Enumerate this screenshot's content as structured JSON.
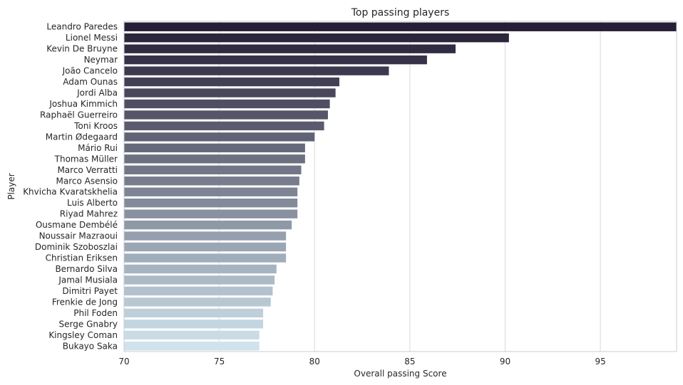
{
  "chart_data": {
    "type": "bar",
    "orientation": "horizontal",
    "title": "Top passing players",
    "xlabel": "Overall passing Score",
    "ylabel": "Player",
    "xlim": [
      70,
      99
    ],
    "xticks": [
      70,
      75,
      80,
      85,
      90,
      95
    ],
    "grid": true,
    "categories": [
      "Leandro Paredes",
      "Lionel Messi",
      "Kevin De Bruyne",
      "Neymar",
      "João Cancelo",
      "Adam Ounas",
      "Jordi Alba",
      "Joshua Kimmich",
      "Raphaël Guerreiro",
      "Toni Kroos",
      "Martin Ødegaard",
      "Mário Rui",
      "Thomas Müller",
      "Marco Verratti",
      "Marco Asensio",
      "Khvicha Kvaratskhelia",
      "Luis Alberto",
      "Riyad Mahrez",
      "Ousmane Dembélé",
      "Noussair Mazraoui",
      "Dominik Szoboszlai",
      "Christian Eriksen",
      "Bernardo Silva",
      "Jamal Musiala",
      "Dimitri Payet",
      "Frenkie de Jong",
      "Phil Foden",
      "Serge Gnabry",
      "Kingsley Coman",
      "Bukayo Saka"
    ],
    "values": [
      99.0,
      90.2,
      87.4,
      85.9,
      83.9,
      81.3,
      81.1,
      80.8,
      80.7,
      80.5,
      80.0,
      79.5,
      79.5,
      79.3,
      79.2,
      79.1,
      79.1,
      79.1,
      78.8,
      78.5,
      78.5,
      78.5,
      78.0,
      77.9,
      77.8,
      77.7,
      77.3,
      77.3,
      77.1,
      77.1
    ],
    "palette": [
      "#261e36",
      "#cfe3ec"
    ]
  }
}
